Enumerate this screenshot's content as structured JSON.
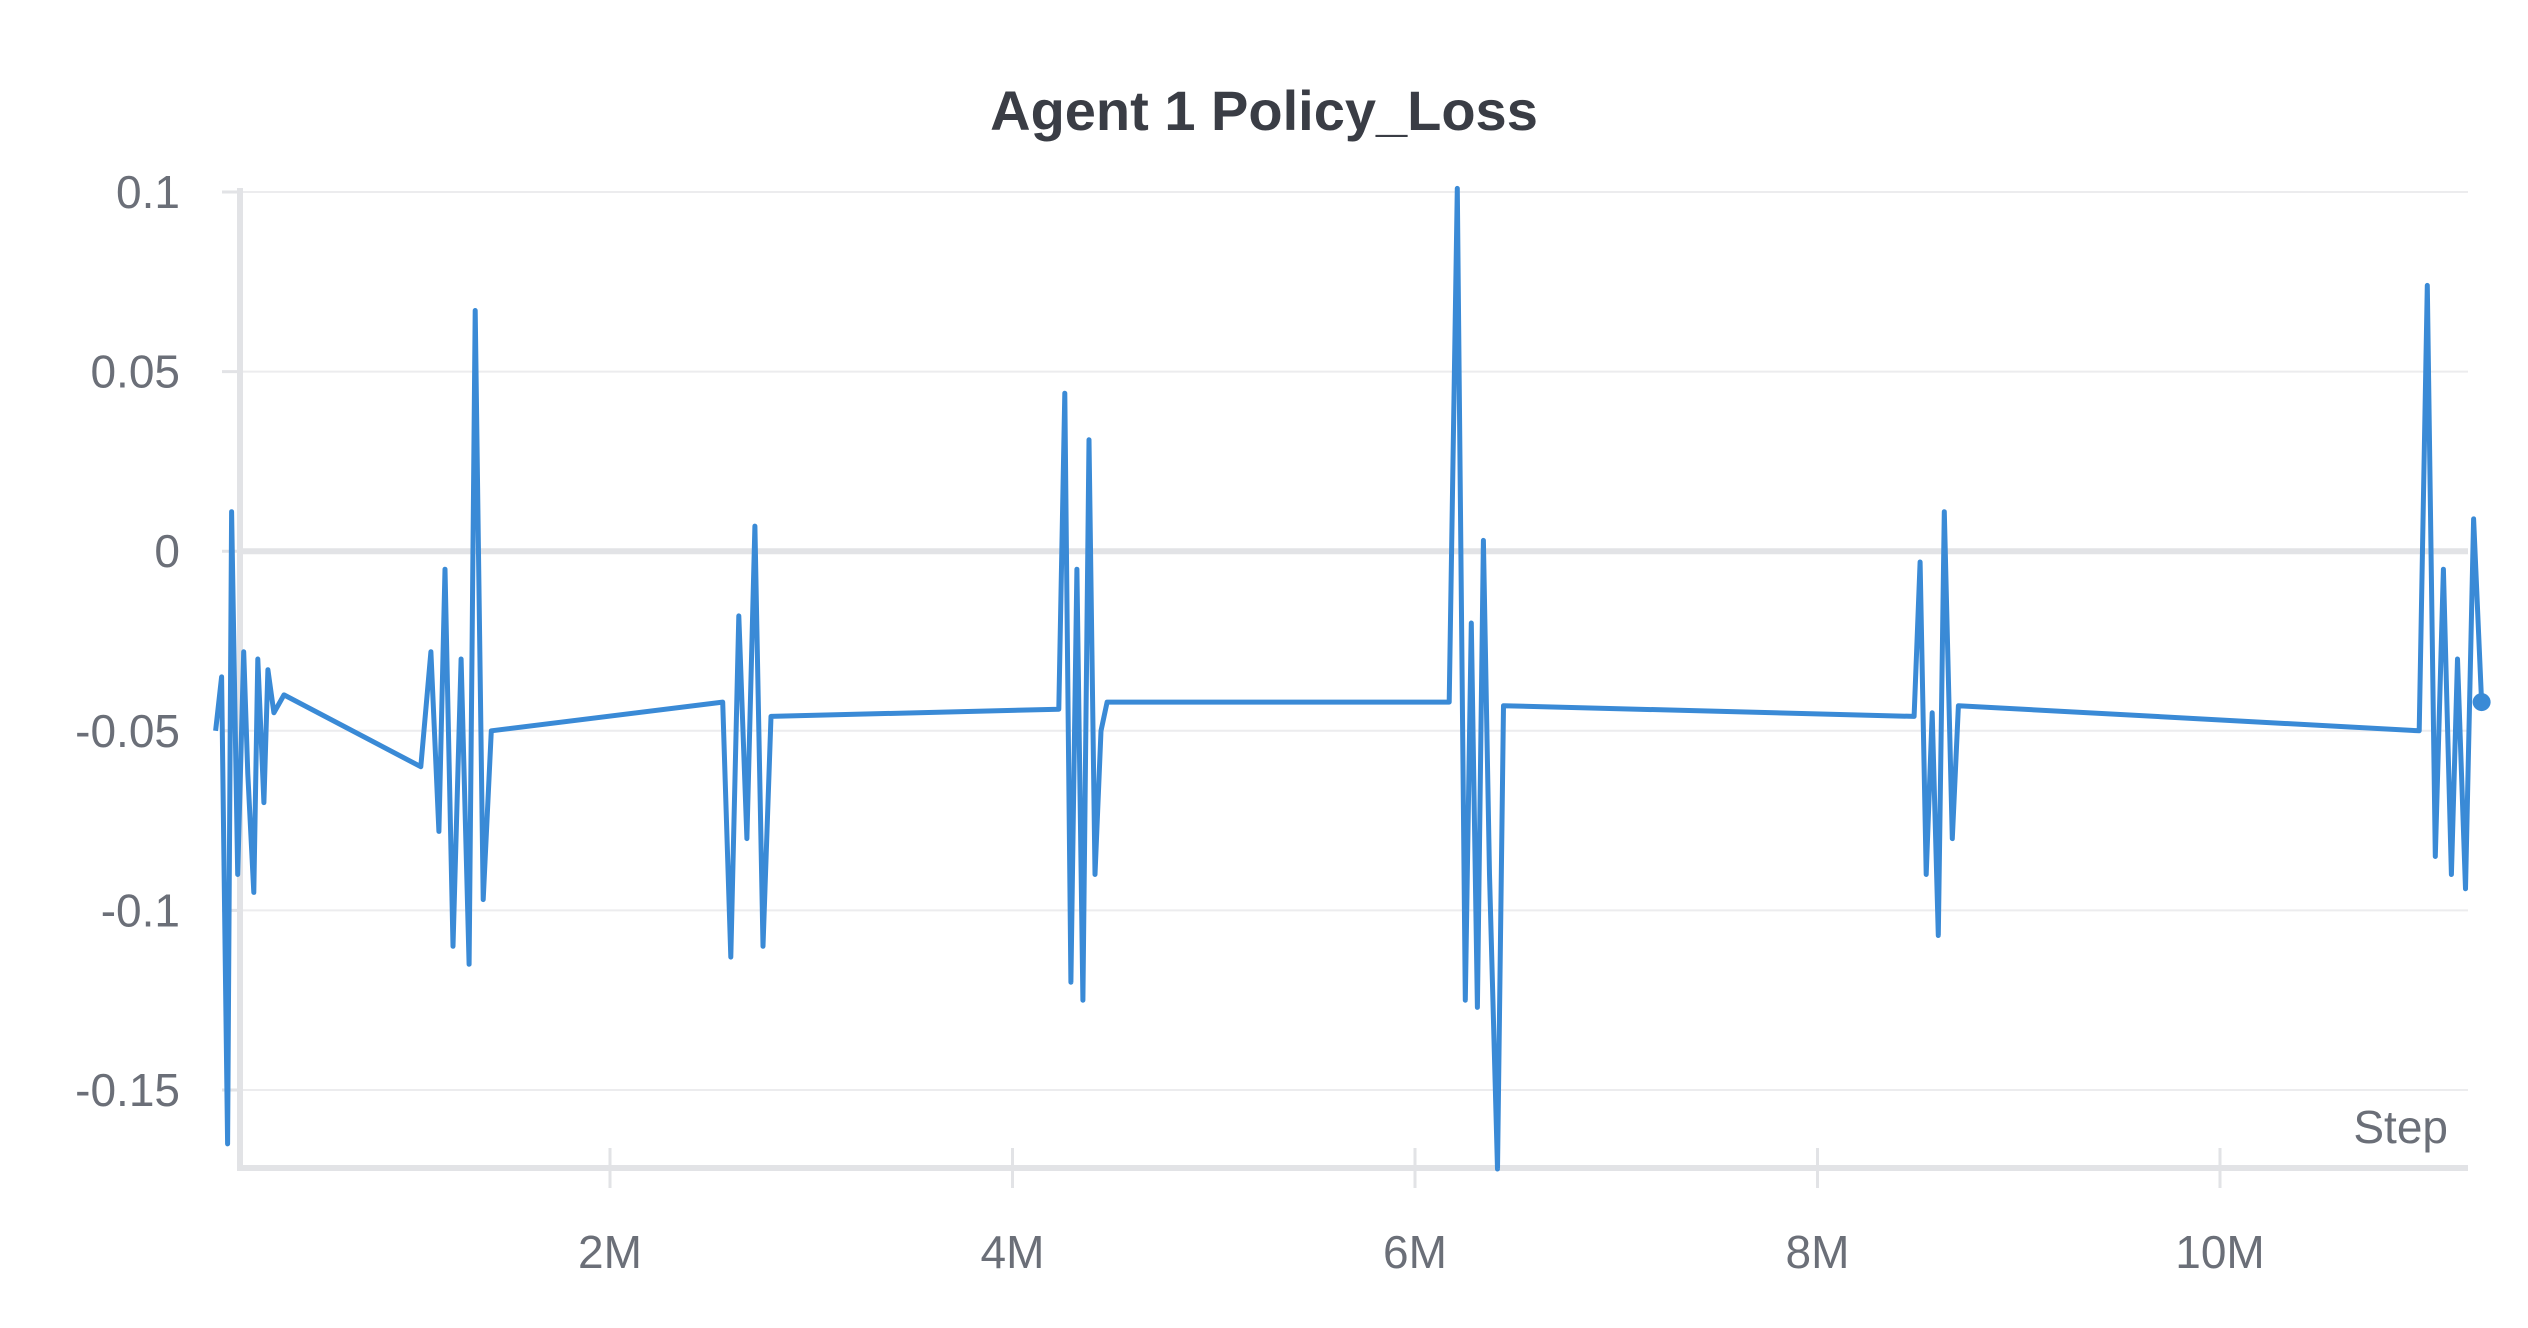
{
  "chart_data": {
    "type": "line",
    "title": "Agent 1 Policy_Loss",
    "xlabel": "Step",
    "ylabel": "",
    "xlim": [
      0,
      11300000
    ],
    "ylim": [
      -0.172,
      0.102
    ],
    "x_ticks": [
      2000000,
      4000000,
      6000000,
      8000000,
      10000000
    ],
    "x_tick_labels": [
      "2M",
      "4M",
      "6M",
      "8M",
      "10M"
    ],
    "y_ticks": [
      0.1,
      0.05,
      0,
      -0.05,
      -0.1,
      -0.15
    ],
    "y_tick_labels": [
      "0.1",
      "0.05",
      "0",
      "-0.05",
      "-0.1",
      "-0.15"
    ],
    "grid": true,
    "color": "#3a8ad6",
    "series": [
      {
        "name": "",
        "x": [
          40000,
          70000,
          100000,
          120000,
          150000,
          180000,
          200000,
          230000,
          250000,
          280000,
          300000,
          330000,
          380000,
          1060000,
          1110000,
          1150000,
          1180000,
          1220000,
          1260000,
          1300000,
          1330000,
          1370000,
          1410000,
          2560000,
          2600000,
          2640000,
          2680000,
          2720000,
          2760000,
          2800000,
          4230000,
          4260000,
          4290000,
          4320000,
          4350000,
          4380000,
          4410000,
          4440000,
          4470000,
          6170000,
          6210000,
          6250000,
          6280000,
          6310000,
          6340000,
          6370000,
          6410000,
          6440000,
          8480000,
          8510000,
          8540000,
          8570000,
          8600000,
          8630000,
          8670000,
          8700000,
          10990000,
          11030000,
          11070000,
          11110000,
          11150000,
          11180000,
          11220000,
          11260000,
          11300000
        ],
        "y": [
          -0.05,
          -0.035,
          -0.165,
          0.011,
          -0.09,
          -0.028,
          -0.062,
          -0.095,
          -0.03,
          -0.07,
          -0.033,
          -0.045,
          -0.04,
          -0.06,
          -0.028,
          -0.078,
          -0.005,
          -0.11,
          -0.03,
          -0.115,
          0.067,
          -0.097,
          -0.05,
          -0.042,
          -0.113,
          -0.018,
          -0.08,
          0.007,
          -0.11,
          -0.046,
          -0.044,
          0.044,
          -0.12,
          -0.005,
          -0.125,
          0.031,
          -0.09,
          -0.05,
          -0.042,
          -0.042,
          0.101,
          -0.125,
          -0.02,
          -0.127,
          0.003,
          -0.09,
          -0.172,
          -0.043,
          -0.046,
          -0.003,
          -0.09,
          -0.045,
          -0.107,
          0.011,
          -0.08,
          -0.043,
          -0.05,
          0.074,
          -0.085,
          -0.005,
          -0.09,
          -0.03,
          -0.094,
          0.009,
          -0.042
        ]
      }
    ]
  }
}
